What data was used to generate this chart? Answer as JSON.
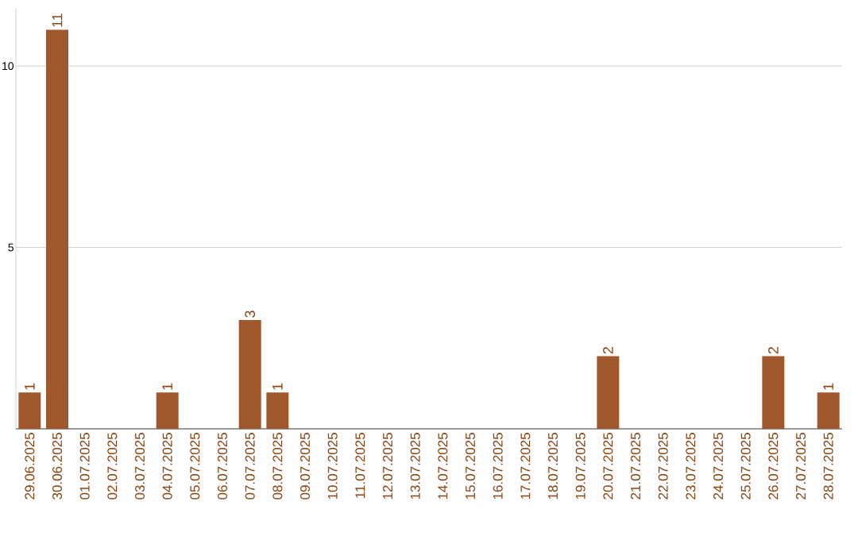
{
  "chart_data": {
    "type": "bar",
    "categories": [
      "29.06.2025",
      "30.06.2025",
      "01.07.2025",
      "02.07.2025",
      "03.07.2025",
      "04.07.2025",
      "05.07.2025",
      "06.07.2025",
      "07.07.2025",
      "08.07.2025",
      "09.07.2025",
      "10.07.2025",
      "11.07.2025",
      "12.07.2025",
      "13.07.2025",
      "14.07.2025",
      "15.07.2025",
      "16.07.2025",
      "17.07.2025",
      "18.07.2025",
      "19.07.2025",
      "20.07.2025",
      "21.07.2025",
      "22.07.2025",
      "23.07.2025",
      "24.07.2025",
      "25.07.2025",
      "26.07.2025",
      "27.07.2025",
      "28.07.2025"
    ],
    "values": [
      1,
      11,
      0,
      0,
      0,
      1,
      0,
      0,
      3,
      1,
      0,
      0,
      0,
      0,
      0,
      0,
      0,
      0,
      0,
      0,
      0,
      2,
      0,
      0,
      0,
      0,
      0,
      2,
      0,
      1
    ],
    "value_labels": [
      "1",
      "11",
      null,
      null,
      null,
      "1",
      null,
      null,
      "3",
      "1",
      null,
      null,
      null,
      null,
      null,
      null,
      null,
      null,
      null,
      null,
      null,
      "2",
      null,
      null,
      null,
      null,
      null,
      "2",
      null,
      "1"
    ],
    "color": "#a0572b",
    "ylim": [
      0,
      11.6
    ],
    "yticks": [
      {
        "value": 5,
        "label": "5"
      },
      {
        "value": 10,
        "label": "10"
      }
    ],
    "grid": "y"
  }
}
